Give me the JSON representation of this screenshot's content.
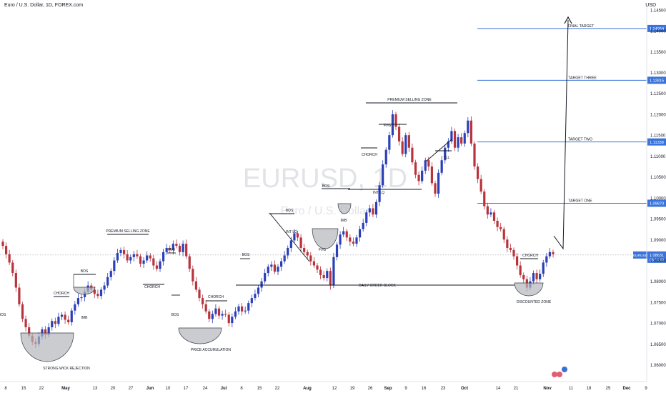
{
  "header": {
    "symbol_line": "Euro / U.S. Dollar, 1D, FOREX.com",
    "price_unit": "USD"
  },
  "watermark": {
    "ticker": "EURUSD, 1D",
    "name": "Euro / U.S. Dollar"
  },
  "colors": {
    "up": "#2a3fb8",
    "down": "#b8333c",
    "target_line": "#3a73d9",
    "annotation": "#131722"
  },
  "chart_data": {
    "type": "candlestick",
    "ylim": [
      1.056,
      1.146
    ],
    "y_ticks": [
      "1.14500",
      "1.14000",
      "1.13500",
      "1.13000",
      "1.12500",
      "1.12000",
      "1.11500",
      "1.11000",
      "1.10500",
      "1.10000",
      "1.09500",
      "1.09000",
      "1.08500",
      "1.08000",
      "1.07500",
      "1.07000",
      "1.06500",
      "1.06000"
    ],
    "x_ticks": [
      "8",
      "15",
      "22",
      "May",
      "13",
      "20",
      "27",
      "Jun",
      "10",
      "17",
      "24",
      "Jul",
      "8",
      "15",
      "22",
      "Aug",
      "12",
      "19",
      "26",
      "Sep",
      "9",
      "16",
      "23",
      "Oct",
      "14",
      "21",
      "Nov",
      "11",
      "18",
      "25",
      "Dec",
      "9"
    ],
    "candle_closes": [
      1.0885,
      1.0865,
      1.0845,
      1.082,
      1.0785,
      1.0745,
      1.071,
      1.069,
      1.067,
      1.0655,
      1.065,
      1.0668,
      1.0685,
      1.0672,
      1.069,
      1.0705,
      1.0698,
      1.0715,
      1.072,
      1.0708,
      1.0702,
      1.073,
      1.0745,
      1.076,
      1.0762,
      1.0775,
      1.079,
      1.078,
      1.077,
      1.0765,
      1.078,
      1.079,
      1.081,
      1.0825,
      1.085,
      1.0868,
      1.0875,
      1.0865,
      1.085,
      1.0858,
      1.0865,
      1.086,
      1.0842,
      1.085,
      1.0862,
      1.0855,
      1.0838,
      1.083,
      1.0848,
      1.087,
      1.088,
      1.0875,
      1.089,
      1.0885,
      1.087,
      1.089,
      1.086,
      1.083,
      1.08,
      1.078,
      1.076,
      1.0745,
      1.0728,
      1.071,
      1.0722,
      1.0735,
      1.0718,
      1.0722,
      1.072,
      1.07,
      1.0715,
      1.0728,
      1.074,
      1.0728,
      1.073,
      1.0748,
      1.076,
      1.077,
      1.0785,
      1.08,
      1.082,
      1.0835,
      1.084,
      1.0823,
      1.0835,
      1.0848,
      1.0862,
      1.088,
      1.0898,
      1.0915,
      1.0905,
      1.088,
      1.087,
      1.0862,
      1.0848,
      1.0838,
      1.0828,
      1.0815,
      1.0808,
      1.0825,
      1.079,
      1.0858,
      1.0888,
      1.0912,
      1.092,
      1.0905,
      1.0895,
      1.089,
      1.0905,
      1.0925,
      1.094,
      1.0965,
      1.0975,
      1.096,
      1.099,
      1.103,
      1.108,
      1.1115,
      1.115,
      1.12,
      1.117,
      1.1135,
      1.1105,
      1.115,
      1.112,
      1.1085,
      1.1055,
      1.104,
      1.1065,
      1.109,
      1.1075,
      1.1035,
      1.101,
      1.106,
      1.109,
      1.112,
      1.1135,
      1.116,
      1.112,
      1.1145,
      1.113,
      1.1155,
      1.1185,
      1.113,
      1.1075,
      1.1045,
      1.1015,
      1.098,
      1.096,
      1.0965,
      1.0945,
      1.093,
      1.0925,
      1.09,
      1.088,
      1.0875,
      1.086,
      1.0838,
      1.0815,
      1.0805,
      1.0785,
      1.08,
      1.082,
      1.0805,
      1.0818,
      1.0845,
      1.086,
      1.087,
      1.0865
    ],
    "levels": [
      {
        "name": "FINAL TARGET",
        "value": 1.14054,
        "label": "1.14054"
      },
      {
        "name": "TARGET THREE",
        "value": 1.12815,
        "label": "1.12815"
      },
      {
        "name": "TARGET TWO",
        "value": 1.11338,
        "label": "1.11338"
      },
      {
        "name": "TARGET ONE",
        "value": 1.0987,
        "label": "1.09870"
      }
    ],
    "current_price": {
      "symbol": "EURUSD",
      "value": 1.08631,
      "label": "1.08631",
      "countdown": "06:14:48"
    },
    "annotations": [
      "STRONG WICK REJECTION",
      "CHORCH",
      "BOS",
      "IMB",
      "BOS",
      "PREMIUM SELLING ZONE",
      "FVG",
      "CHORCH",
      "BOS",
      "CHORCH",
      "PRICE ACCUMULATION",
      "BOS",
      "BOS",
      "INT LQ",
      "DAILY ORDER BLOCK",
      "FVG",
      "IMB",
      "BOS",
      "INT LQ",
      "CHORCH",
      "FVG",
      "PREMIUM SELLING ZONE",
      "TLL",
      "CHORCH",
      "DISCOUNTED ZONE"
    ]
  }
}
